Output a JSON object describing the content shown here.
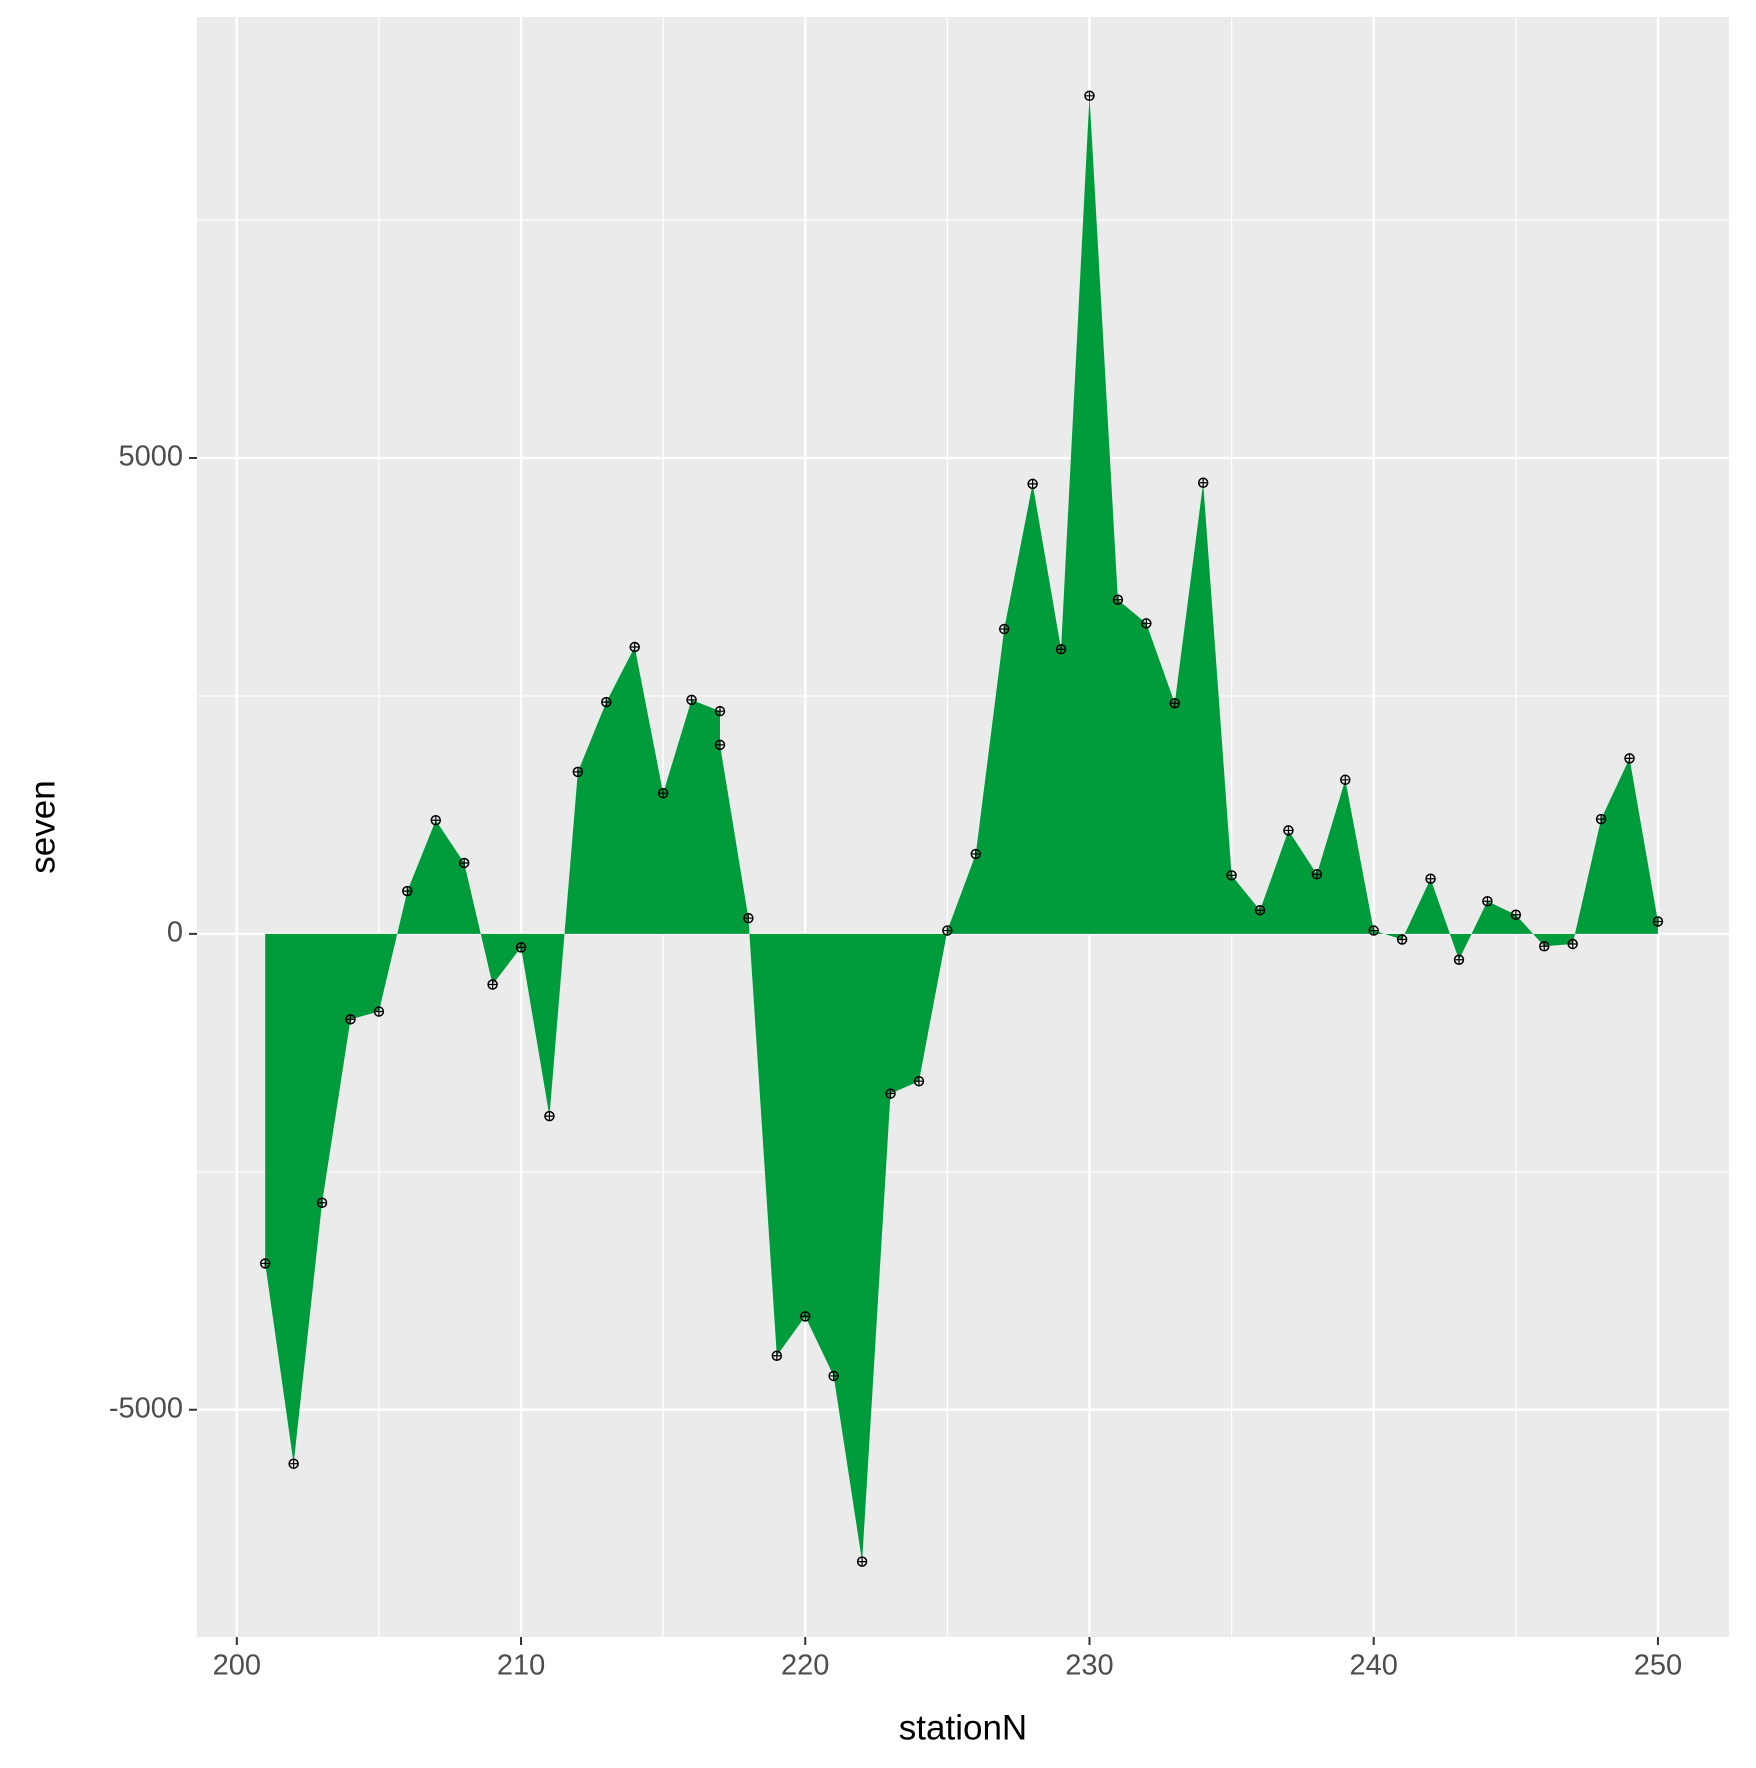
{
  "chart_data": {
    "type": "area",
    "x_label": "stationN",
    "y_label": "seven",
    "x": [
      201,
      202,
      203,
      204,
      205,
      206,
      207,
      208,
      209,
      210,
      211,
      212,
      213,
      214,
      215,
      216,
      217,
      217,
      218,
      219,
      220,
      221,
      222,
      223,
      224,
      225,
      226,
      227,
      228,
      229,
      230,
      231,
      232,
      233,
      234,
      235,
      236,
      237,
      238,
      239,
      240,
      241,
      242,
      243,
      244,
      245,
      246,
      247,
      248,
      249,
      250
    ],
    "values": [
      -3463,
      -5567,
      -2825,
      -898,
      -816,
      449,
      1194,
      745,
      -532,
      -142,
      -1915,
      1702,
      2435,
      3014,
      1478,
      2459,
      2340,
      1986,
      165,
      -4433,
      -4019,
      -4645,
      -6596,
      -1678,
      -1548,
      35,
      839,
      3203,
      4728,
      2991,
      8806,
      3511,
      3262,
      2423,
      4740,
      615,
      248,
      1087,
      626,
      1619,
      35,
      -59,
      579,
      -272,
      343,
      201,
      -130,
      -106,
      1206,
      1844,
      130
    ],
    "color": "#009c3c",
    "xlim": [
      198.6,
      252.5
    ],
    "ylim": [
      -7388,
      9634
    ],
    "xticks": [
      200,
      210,
      220,
      230,
      240,
      250
    ],
    "yticks": [
      -5000,
      0,
      5000
    ],
    "grid": true
  }
}
